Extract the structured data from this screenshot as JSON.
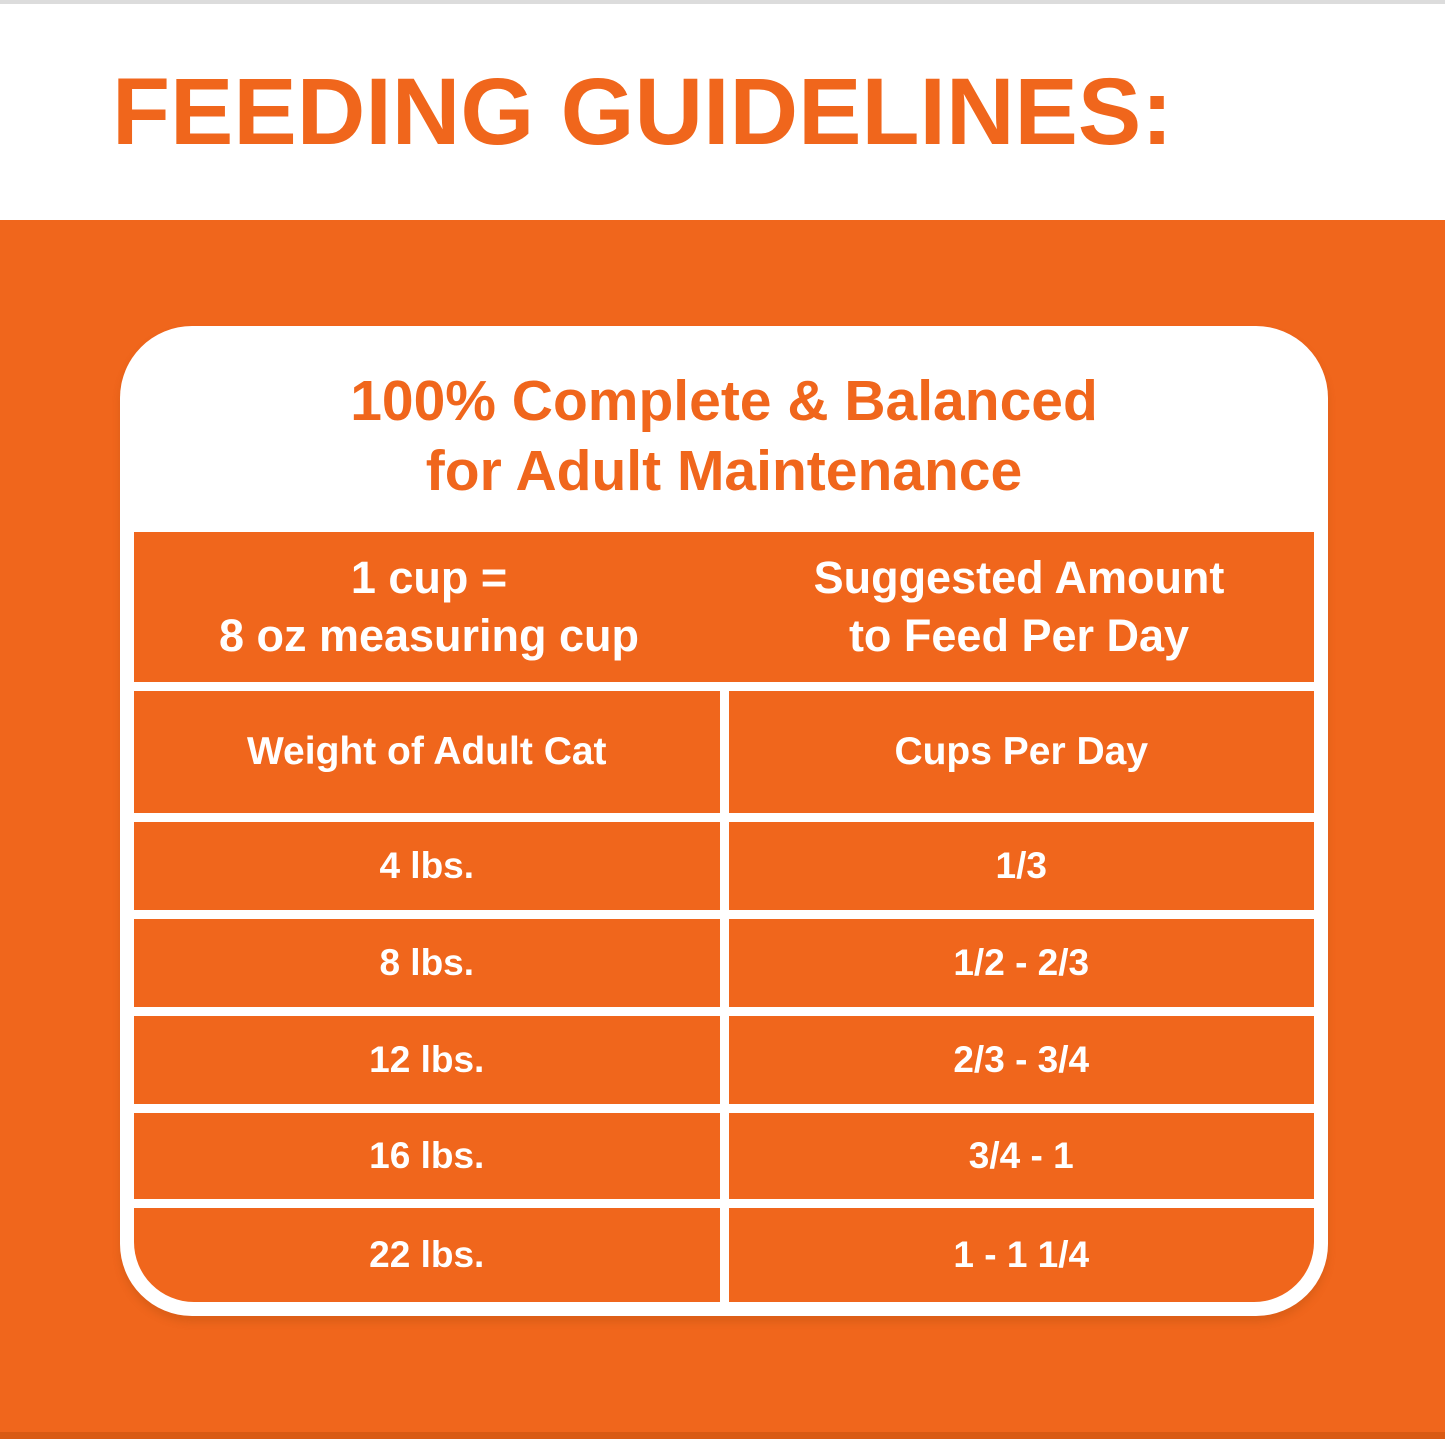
{
  "page": {
    "title": "FEEDING GUIDELINES:",
    "colors": {
      "orange": "#F0661C",
      "white": "#FFFFFF"
    }
  },
  "card": {
    "heading_line1": "100% Complete & Balanced",
    "heading_line2": "for Adult Maintenance",
    "cup_info": {
      "line1": "1 cup =",
      "line2": "8 oz measuring cup"
    },
    "suggested_info": {
      "line1": "Suggested Amount",
      "line2": "to Feed Per Day"
    }
  },
  "table": {
    "columns": [
      "Weight of Adult Cat",
      "Cups Per Day"
    ],
    "rows": [
      {
        "weight": "4 lbs.",
        "cups": "1/3"
      },
      {
        "weight": "8 lbs.",
        "cups": "1/2 - 2/3"
      },
      {
        "weight": "12 lbs.",
        "cups": "2/3 - 3/4"
      },
      {
        "weight": "16 lbs.",
        "cups": "3/4 - 1"
      },
      {
        "weight": "22 lbs.",
        "cups": "1 - 1 1/4"
      }
    ]
  }
}
